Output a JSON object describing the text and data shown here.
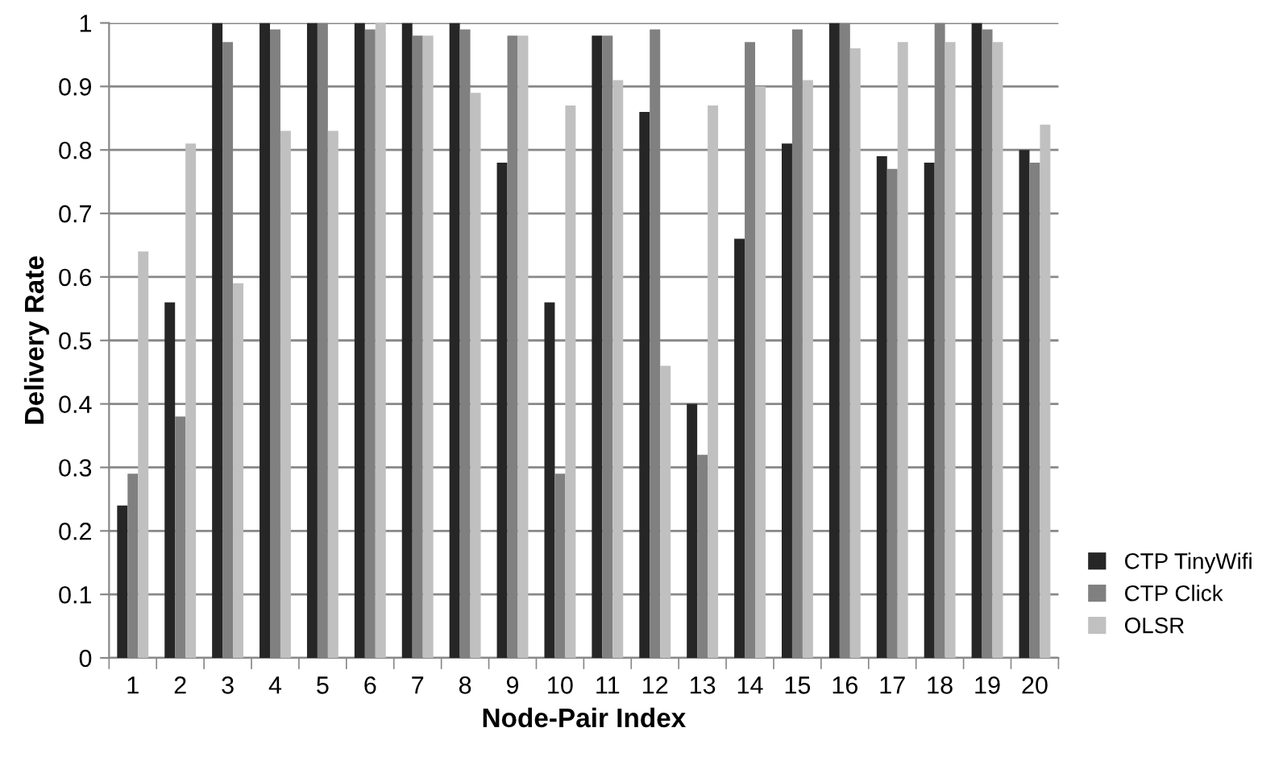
{
  "chart_data": {
    "type": "bar",
    "xlabel": "Node-Pair Index",
    "ylabel": "Delivery Rate",
    "categories": [
      "1",
      "2",
      "3",
      "4",
      "5",
      "6",
      "7",
      "8",
      "9",
      "10",
      "11",
      "12",
      "13",
      "14",
      "15",
      "16",
      "17",
      "18",
      "19",
      "20"
    ],
    "series": [
      {
        "name": "CTP TinyWifi",
        "color": "#262626",
        "values": [
          0.24,
          0.56,
          1,
          1,
          1,
          1,
          1,
          1,
          0.78,
          0.56,
          0.98,
          0.86,
          0.4,
          0.66,
          0.81,
          1,
          0.79,
          0.78,
          1,
          0.8
        ]
      },
      {
        "name": "CTP Click",
        "color": "#808080",
        "values": [
          0.29,
          0.38,
          0.97,
          0.99,
          1,
          0.99,
          0.98,
          0.99,
          0.98,
          0.29,
          0.98,
          0.99,
          0.32,
          0.97,
          0.99,
          1,
          0.77,
          1,
          0.99,
          0.78
        ]
      },
      {
        "name": "OLSR",
        "color": "#c0c0c0",
        "values": [
          0.64,
          0.81,
          0.59,
          0.83,
          0.83,
          1,
          0.98,
          0.89,
          0.98,
          0.87,
          0.91,
          0.46,
          0.87,
          0.9,
          0.91,
          0.96,
          0.97,
          0.97,
          0.97,
          0.84
        ]
      }
    ],
    "ylim": [
      0,
      1
    ],
    "yticks": [
      0,
      0.1,
      0.2,
      0.3,
      0.4,
      0.5,
      0.6,
      0.7,
      0.8,
      0.9,
      1
    ],
    "grid": "y",
    "legend": "bottom right"
  }
}
